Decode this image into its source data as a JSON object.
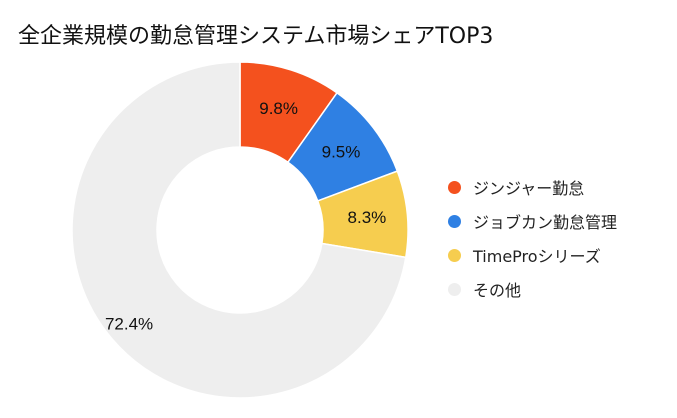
{
  "chart_data": {
    "type": "pie",
    "title": "全企業規模の勤怠管理システム市場シェアTOP3",
    "categories": [
      "ジンジャー勤怠",
      "ジョブカン勤怠管理",
      "TimeProシリーズ",
      "その他"
    ],
    "values": [
      9.8,
      9.5,
      8.3,
      72.4
    ],
    "data_labels": [
      "9.8%",
      "9.5%",
      "8.3%",
      "72.4%"
    ],
    "colors": [
      "#f4511e",
      "#2f80e3",
      "#f6cd4f",
      "#eeeeee"
    ],
    "legend_position": "right",
    "donut": true
  }
}
